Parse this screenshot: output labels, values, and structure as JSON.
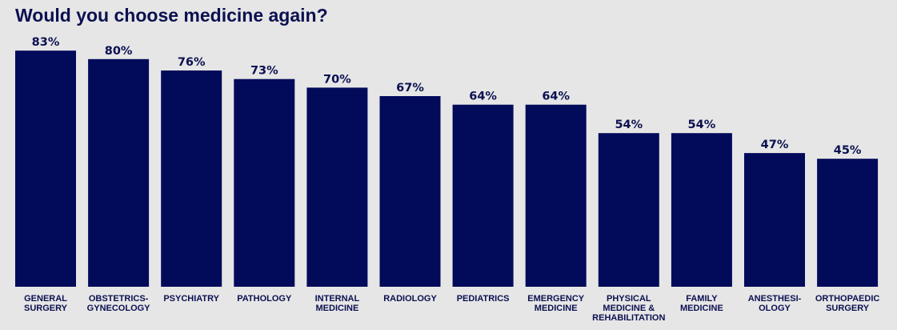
{
  "chart_data": {
    "type": "bar",
    "title": "Would you choose medicine again?",
    "xlabel": "",
    "ylabel": "",
    "ylim": [
      0,
      100
    ],
    "grid": false,
    "categories": [
      [
        "GENERAL",
        "SURGERY"
      ],
      [
        "OBSTETRICS-",
        "GYNECOLOGY"
      ],
      [
        "PSYCHIATRY"
      ],
      [
        "PATHOLOGY"
      ],
      [
        "INTERNAL",
        "MEDICINE"
      ],
      [
        "RADIOLOGY"
      ],
      [
        "PEDIATRICS"
      ],
      [
        "EMERGENCY",
        "MEDICINE"
      ],
      [
        "PHYSICAL",
        "MEDICINE &",
        "REHABILITATION"
      ],
      [
        "FAMILY",
        "MEDICINE"
      ],
      [
        "ANESTHESI-",
        "OLOGY"
      ],
      [
        "ORTHOPAEDIC",
        "SURGERY"
      ]
    ],
    "values": [
      83,
      80,
      76,
      73,
      70,
      67,
      64,
      64,
      54,
      54,
      47,
      45
    ],
    "value_labels": [
      "83%",
      "80%",
      "76%",
      "73%",
      "70%",
      "67%",
      "64%",
      "64%",
      "54%",
      "54%",
      "47%",
      "45%"
    ]
  },
  "colors": {
    "background": "#e6e6e6",
    "bar": "#020a5a",
    "text": "#0b1050"
  }
}
